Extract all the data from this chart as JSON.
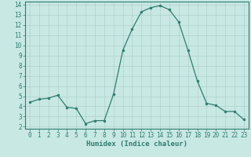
{
  "x": [
    0,
    1,
    2,
    3,
    4,
    5,
    6,
    7,
    8,
    9,
    10,
    11,
    12,
    13,
    14,
    15,
    16,
    17,
    18,
    19,
    20,
    21,
    22,
    23
  ],
  "y": [
    4.4,
    4.7,
    4.8,
    5.1,
    3.9,
    3.8,
    2.3,
    2.6,
    2.6,
    5.2,
    9.5,
    11.6,
    13.3,
    13.7,
    13.9,
    13.5,
    12.3,
    9.5,
    6.5,
    4.3,
    4.1,
    3.5,
    3.5,
    2.7
  ],
  "xlabel": "Humidex (Indice chaleur)",
  "ylim_min": 1.8,
  "ylim_max": 14.3,
  "xlim_min": -0.5,
  "xlim_max": 23.5,
  "yticks": [
    2,
    3,
    4,
    5,
    6,
    7,
    8,
    9,
    10,
    11,
    12,
    13,
    14
  ],
  "xticks": [
    0,
    1,
    2,
    3,
    4,
    5,
    6,
    7,
    8,
    9,
    10,
    11,
    12,
    13,
    14,
    15,
    16,
    17,
    18,
    19,
    20,
    21,
    22,
    23
  ],
  "line_color": "#2e7d6e",
  "marker_color": "#2e7d6e",
  "bg_color": "#c8e8e4",
  "grid_color": "#b0d0cc",
  "tick_label_fontsize": 5.5,
  "xlabel_fontsize": 6.5,
  "marker_size": 2.0,
  "line_width": 0.9
}
